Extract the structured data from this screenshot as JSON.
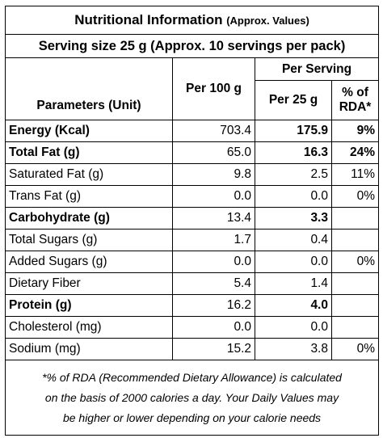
{
  "header": {
    "title": "Nutritional Information",
    "title_note": "(Approx. Values)",
    "serving": "Serving size 25 g (Approx. 10 servings per pack)"
  },
  "table": {
    "columns": {
      "parameters": "Parameters (Unit)",
      "per_100": "Per 100 g",
      "per_serving": "Per Serving",
      "per_25": "Per 25 g",
      "rda_top": "% of",
      "rda_bottom": "RDA*"
    },
    "rows": [
      {
        "name": "Energy (Kcal)",
        "per_100": "703.4",
        "per_25": "175.9",
        "rda": "9%",
        "bold": true
      },
      {
        "name": "Total Fat (g)",
        "per_100": "65.0",
        "per_25": "16.3",
        "rda": "24%",
        "bold": true
      },
      {
        "name": "Saturated Fat (g)",
        "per_100": "9.8",
        "per_25": "2.5",
        "rda": "11%",
        "bold": false
      },
      {
        "name": "Trans Fat (g)",
        "per_100": "0.0",
        "per_25": "0.0",
        "rda": "0%",
        "bold": false
      },
      {
        "name": "Carbohydrate (g)",
        "per_100": "13.4",
        "per_25": "3.3",
        "rda": null,
        "bold": true
      },
      {
        "name": "Total Sugars (g)",
        "per_100": "1.7",
        "per_25": "0.4",
        "rda": null,
        "bold": false
      },
      {
        "name": "Added Sugars (g)",
        "per_100": "0.0",
        "per_25": "0.0",
        "rda": "0%",
        "bold": false
      },
      {
        "name": "Dietary Fiber",
        "per_100": "5.4",
        "per_25": "1.4",
        "rda": null,
        "bold": false
      },
      {
        "name": "Protein (g)",
        "per_100": "16.2",
        "per_25": "4.0",
        "rda": null,
        "bold": true
      },
      {
        "name": "Cholesterol (mg)",
        "per_100": "0.0",
        "per_25": "0.0",
        "rda": null,
        "bold": false
      },
      {
        "name": "Sodium (mg)",
        "per_100": "15.2",
        "per_25": "3.8",
        "rda": "0%",
        "bold": false
      }
    ]
  },
  "footnote": [
    "*% of RDA (Recommended Dietary Allowance) is calculated",
    "on the basis of 2000 calories a day. Your Daily Values may",
    "be higher or lower depending on your calorie needs"
  ]
}
